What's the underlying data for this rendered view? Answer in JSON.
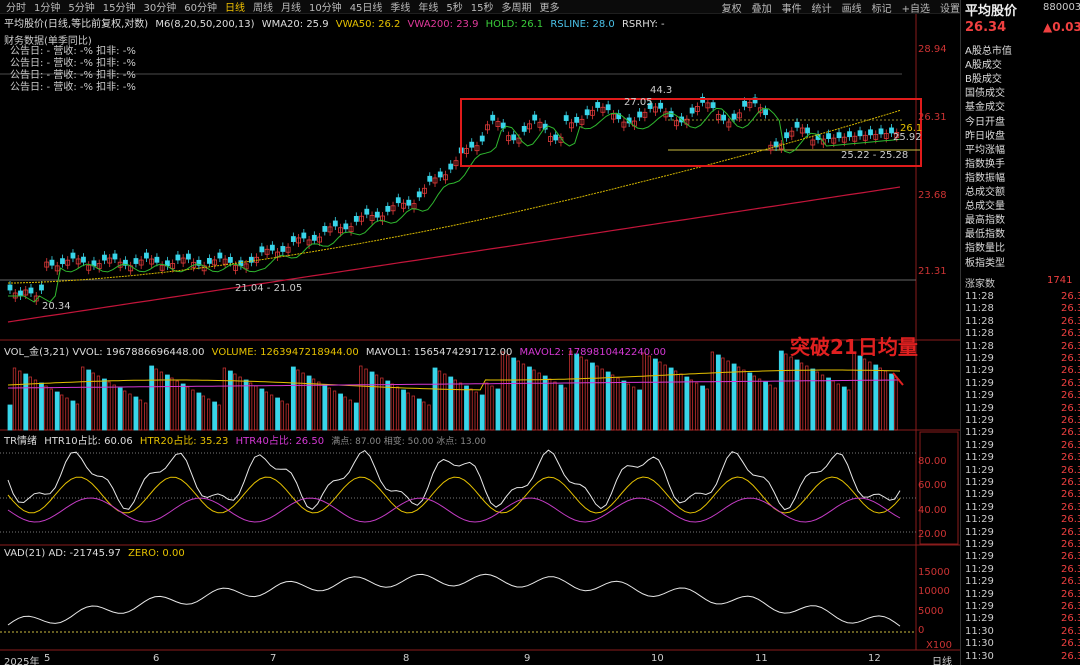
{
  "toolbar": {
    "periods": [
      "分时",
      "1分钟",
      "5分钟",
      "15分钟",
      "30分钟",
      "60分钟",
      "日线",
      "周线",
      "月线",
      "10分钟",
      "45日线",
      "季线",
      "年线",
      "5秒",
      "15秒",
      "多周期",
      "更多"
    ],
    "active_period": "日线",
    "right": [
      "复权",
      "叠加",
      "事件",
      "统计",
      "画线",
      "标记",
      "+自选",
      "设置"
    ]
  },
  "chart": {
    "ma_label": "平均股价(日线,等比前复权,对数)",
    "ma_params": "M6(8,20,50,200,13)",
    "wma20": "WMA20: 25.9",
    "vwa50": "VWA50: 26.2",
    "vwa200": "VWA200: 23.9",
    "hold": "HOLD: 26.1",
    "rsline": "RSLINE: 28.0",
    "rsrhy": "RSRHY: -",
    "fin_title": "财务数据(单季同比)",
    "fin_rows": [
      "公告日: -   营收: -%   扣非: -%",
      "公告日: -   营收: -%   扣非: -%",
      "公告日: -   营收: -%   扣非: -%",
      "公告日: -   营收: -%   扣非: -%"
    ],
    "annotations": {
      "peak1": "27.05",
      "peak2": "44.3",
      "low1": "20.34",
      "range1": "21.04 - 21.05",
      "range2": "25.22 - 25.28",
      "lbl_261": "26.1",
      "lbl_2592": "25.92"
    },
    "price_axis": [
      "28.94",
      "26.31",
      "23.68",
      "21.31"
    ],
    "vol_label": "VOL_金(3,21) VVOL: 1967886696448.00",
    "vol_volume": "VOLUME: 1263947218944.00",
    "vol_mavol1": "MAVOL1: 1565474291712.00",
    "vol_mavol2": "MAVOL2: 1789810442240.00",
    "breakout_text": "突破21日均量",
    "tr_label": "TR情绪",
    "tr_htr10": "HTR10占比: 60.06",
    "tr_htr20": "HTR20占比: 35.23",
    "tr_htr40": "HTR40占比: 26.50",
    "tr_rest": "满点: 87.00  相变: 50.00  冰点: 13.00",
    "tr_axis": [
      "80.00",
      "60.00",
      "40.00",
      "20.00"
    ],
    "vad_label": "VAD(21) AD: -21745.97",
    "vad_zero": "ZERO: 0.00",
    "vad_axis": [
      "15000",
      "10000",
      "5000",
      "0"
    ],
    "vad_unit": "X100",
    "date_axis": [
      "2025年",
      "5",
      "6",
      "7",
      "8",
      "9",
      "10",
      "11",
      "12"
    ],
    "date_unit": "日线"
  },
  "side": {
    "title": "平均股价",
    "code": "880003",
    "price": "26.34",
    "change": "▲0.03",
    "menu": [
      "A股总市值",
      "A股成交",
      "B股成交",
      "国债成交",
      "基金成交",
      "今日开盘",
      "昨日收盘",
      "平均涨幅",
      "指数换手",
      "指数振幅",
      "总成交额",
      "总成交量",
      "最高指数",
      "最低指数",
      "指数量比",
      "板指类型"
    ],
    "count_label": "涨家数",
    "count_value": "1741",
    "ticks": [
      [
        "11:28",
        "26.3"
      ],
      [
        "11:28",
        "26.3"
      ],
      [
        "11:28",
        "26.3"
      ],
      [
        "11:28",
        "26.3"
      ],
      [
        "11:28",
        "26.3"
      ],
      [
        "11:29",
        "26.3"
      ],
      [
        "11:29",
        "26.3"
      ],
      [
        "11:29",
        "26.3"
      ],
      [
        "11:29",
        "26.3"
      ],
      [
        "11:29",
        "26.3"
      ],
      [
        "11:29",
        "26.3"
      ],
      [
        "11:29",
        "26.3"
      ],
      [
        "11:29",
        "26.3"
      ],
      [
        "11:29",
        "26.3"
      ],
      [
        "11:29",
        "26.3"
      ],
      [
        "11:29",
        "26.3"
      ],
      [
        "11:29",
        "26.3"
      ],
      [
        "11:29",
        "26.3"
      ],
      [
        "11:29",
        "26.3"
      ],
      [
        "11:29",
        "26.3"
      ],
      [
        "11:29",
        "26.3"
      ],
      [
        "11:29",
        "26.3"
      ],
      [
        "11:29",
        "26.3"
      ],
      [
        "11:29",
        "26.3"
      ],
      [
        "11:29",
        "26.3"
      ],
      [
        "11:29",
        "26.3"
      ],
      [
        "11:29",
        "26.3"
      ],
      [
        "11:30",
        "26.3"
      ],
      [
        "11:30",
        "26.3"
      ],
      [
        "11:30",
        "26.3"
      ]
    ]
  }
}
